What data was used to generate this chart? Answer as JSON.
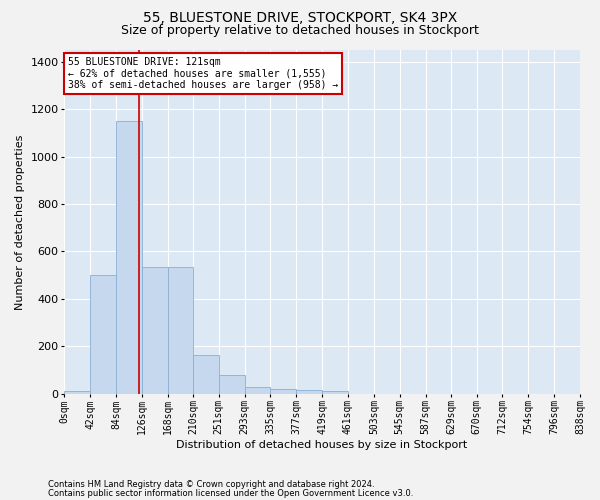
{
  "title1": "55, BLUESTONE DRIVE, STOCKPORT, SK4 3PX",
  "title2": "Size of property relative to detached houses in Stockport",
  "xlabel": "Distribution of detached houses by size in Stockport",
  "ylabel": "Number of detached properties",
  "footer1": "Contains HM Land Registry data © Crown copyright and database right 2024.",
  "footer2": "Contains public sector information licensed under the Open Government Licence v3.0.",
  "bin_edges": [
    0,
    42,
    84,
    126,
    168,
    210,
    251,
    293,
    335,
    377,
    419,
    461,
    503,
    545,
    587,
    629,
    670,
    712,
    754,
    796,
    838
  ],
  "bin_labels": [
    "0sqm",
    "42sqm",
    "84sqm",
    "126sqm",
    "168sqm",
    "210sqm",
    "251sqm",
    "293sqm",
    "335sqm",
    "377sqm",
    "419sqm",
    "461sqm",
    "503sqm",
    "545sqm",
    "587sqm",
    "629sqm",
    "670sqm",
    "712sqm",
    "754sqm",
    "796sqm",
    "838sqm"
  ],
  "bar_heights": [
    10,
    500,
    1150,
    535,
    535,
    165,
    80,
    30,
    20,
    15,
    10,
    0,
    0,
    0,
    0,
    0,
    0,
    0,
    0,
    0
  ],
  "bar_color": "#c5d8ee",
  "bar_edge_color": "#8aaed4",
  "property_line_x": 121,
  "property_line_color": "#cc0000",
  "annotation_line1": "55 BLUESTONE DRIVE: 121sqm",
  "annotation_line2": "← 62% of detached houses are smaller (1,555)",
  "annotation_line3": "38% of semi-detached houses are larger (958) →",
  "annotation_bg": "#ffffff",
  "annotation_border": "#cc0000",
  "ylim": [
    0,
    1450
  ],
  "yticks": [
    0,
    200,
    400,
    600,
    800,
    1000,
    1200,
    1400
  ],
  "plot_bg": "#dce8f4",
  "fig_bg": "#f2f2f2",
  "grid_color": "#ffffff",
  "title1_fontsize": 10,
  "title2_fontsize": 9,
  "axis_label_fontsize": 8,
  "tick_fontsize": 7,
  "annotation_fontsize": 7,
  "footer_fontsize": 6
}
